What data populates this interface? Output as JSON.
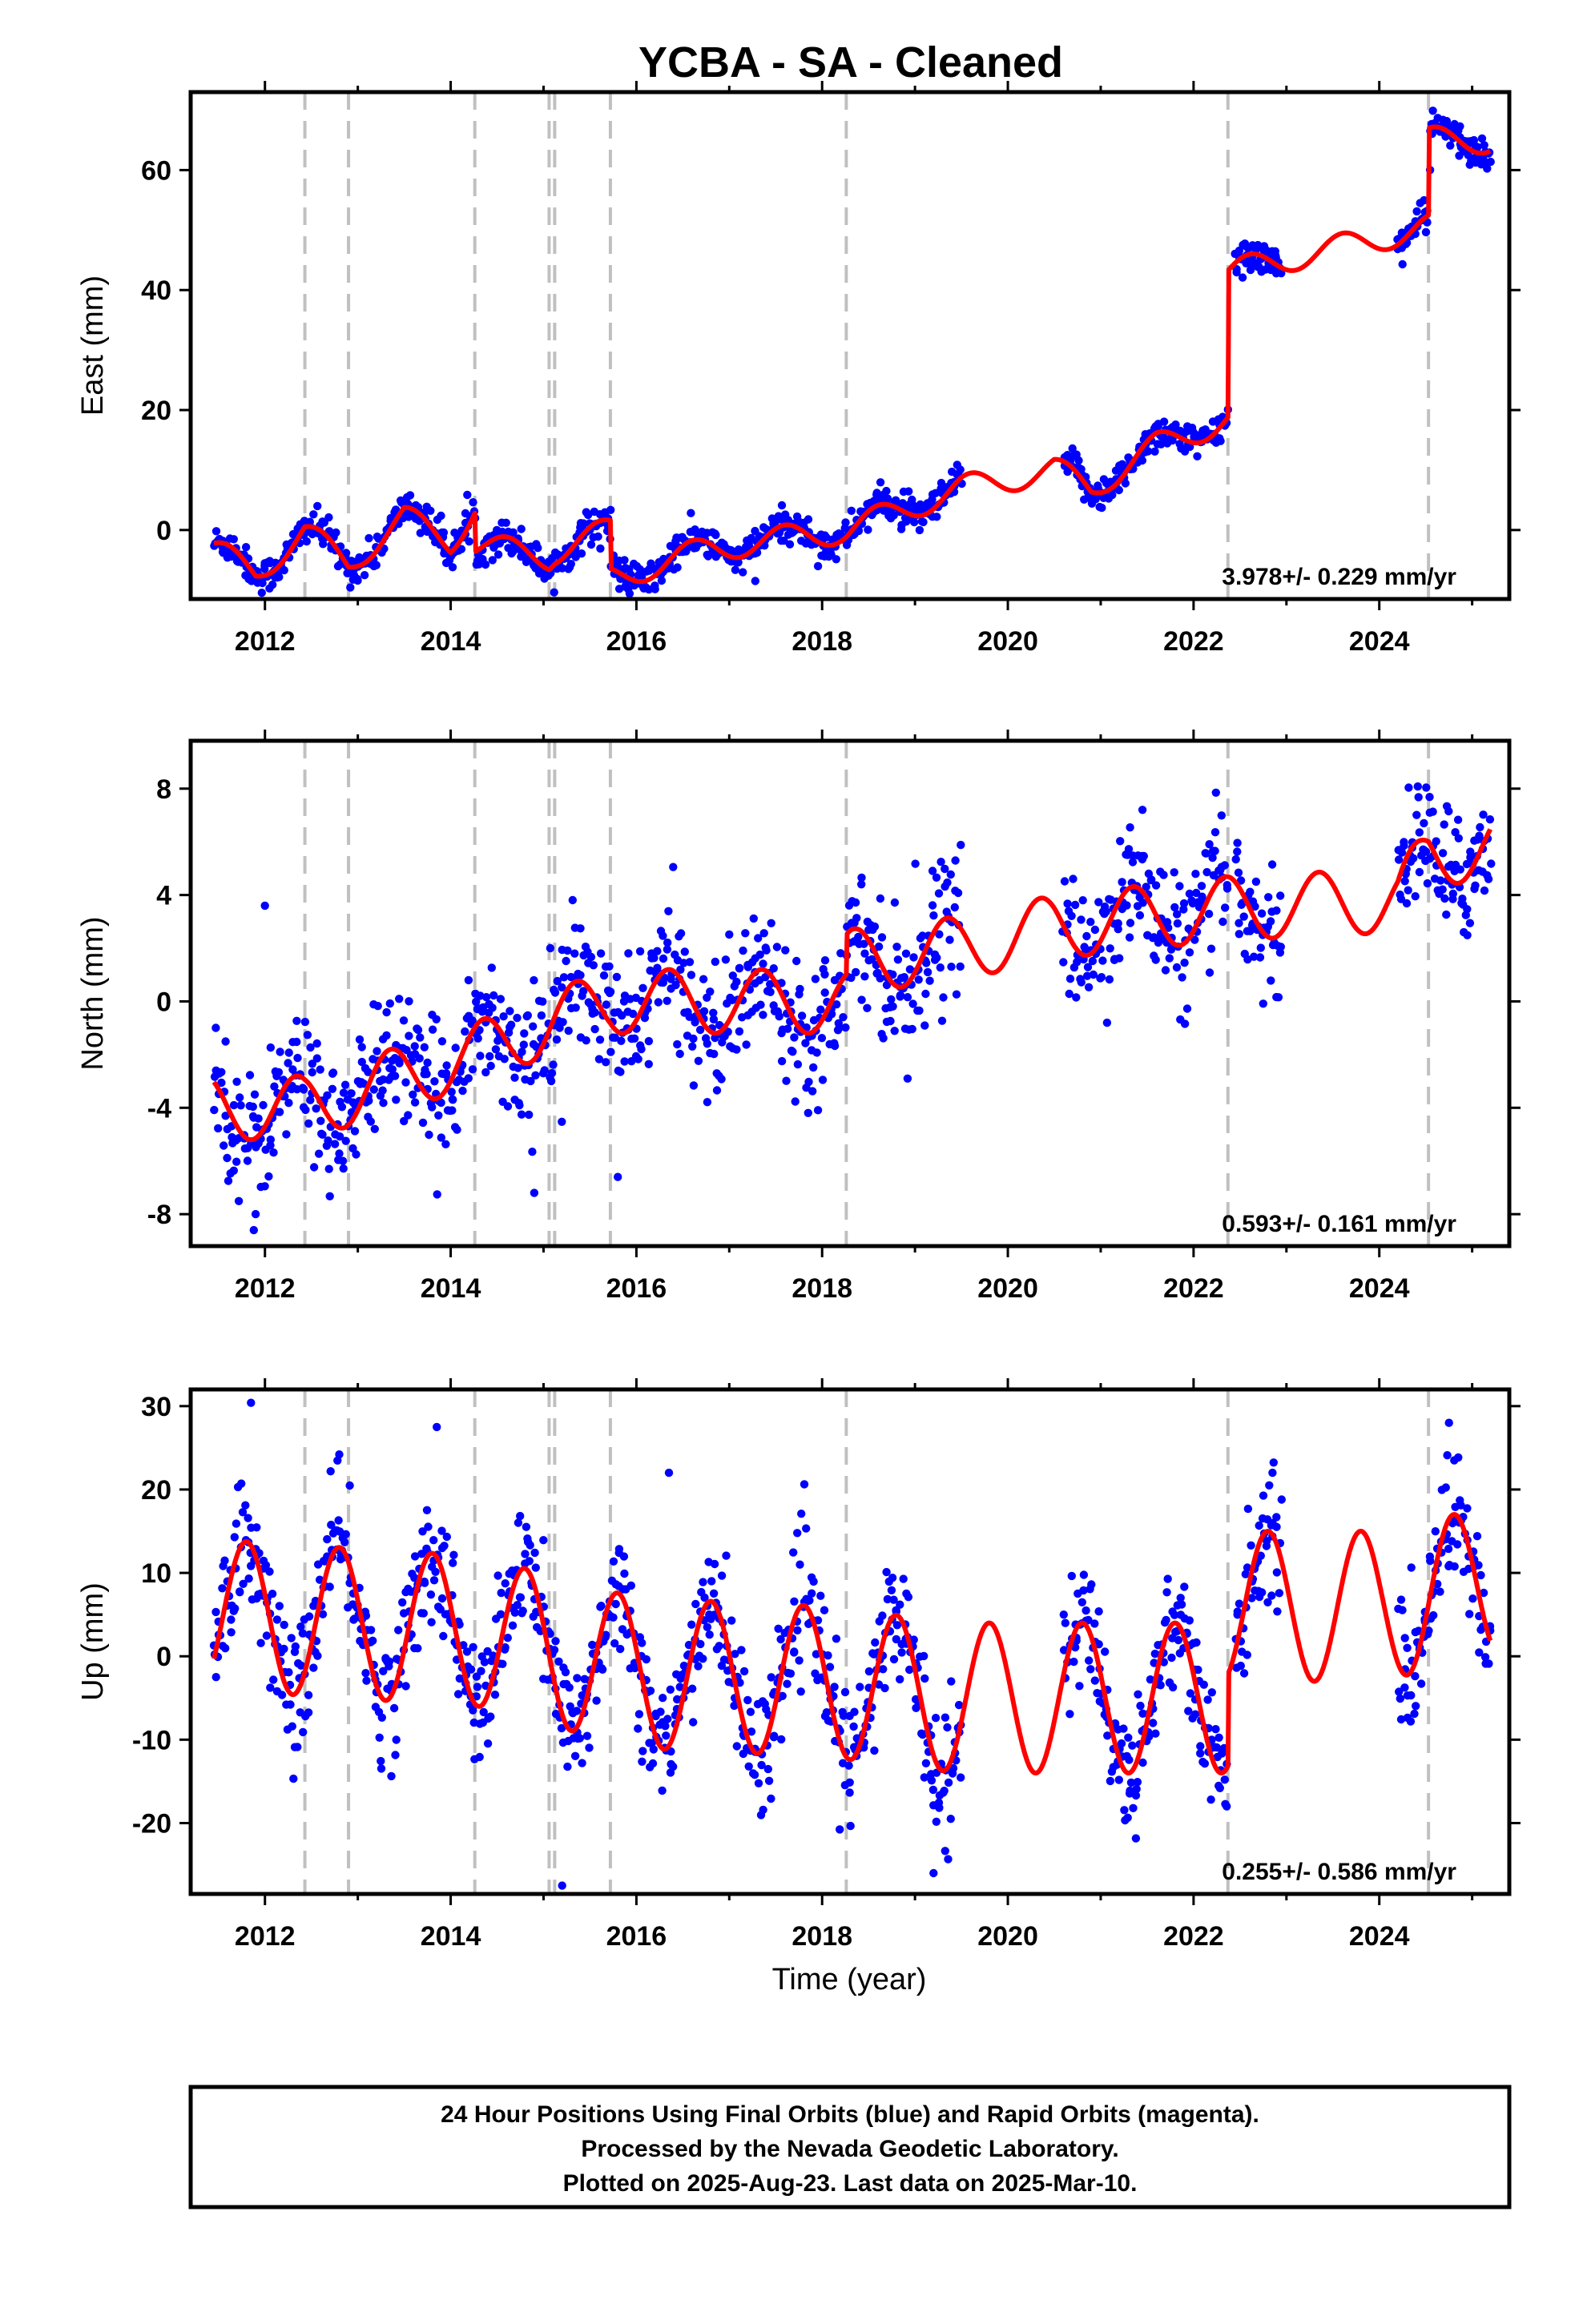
{
  "figure": {
    "title": "YCBA  - SA - Cleaned",
    "xlabel": "Time (year)",
    "footer_lines": [
      "24 Hour Positions Using Final Orbits (blue) and Rapid Orbits (magenta).",
      "Processed by the Nevada Geodetic Laboratory.",
      "Plotted on 2025-Aug-23. Last data on 2025-Mar-10."
    ],
    "colors": {
      "points": "#0000ff",
      "model": "#ff0000",
      "breaks": "#c0c0c0"
    }
  },
  "chart_data": [
    {
      "type": "scatter",
      "name": "east",
      "ylabel": "East (mm)",
      "xlim": [
        2011.2,
        2025.4
      ],
      "ylim": [
        -11.5,
        73
      ],
      "yticks": [
        0,
        20,
        40,
        60
      ],
      "xticks": [
        2012,
        2014,
        2016,
        2018,
        2020,
        2022,
        2024
      ],
      "rate_text": "3.978+/- 0.229 mm/yr",
      "vertical_lines": [
        2012.43,
        2012.9,
        2014.26,
        2015.06,
        2015.12,
        2015.72,
        2018.26,
        2022.37,
        2024.53
      ],
      "data_segments": [
        [
          2011.45,
          2019.5
        ],
        [
          2020.6,
          2022.37
        ],
        [
          2022.45,
          2022.95
        ],
        [
          2024.2,
          2025.2
        ]
      ],
      "model_knots": [
        [
          2011.45,
          -3.5
        ],
        [
          2011.9,
          -7
        ],
        [
          2012.43,
          -0.5
        ],
        [
          2012.9,
          -5.5
        ],
        [
          2013.5,
          2
        ],
        [
          2014.0,
          -2
        ],
        [
          2014.26,
          4
        ],
        [
          2014.27,
          -2.5
        ],
        [
          2015.06,
          -4.5
        ],
        [
          2015.12,
          -3.5
        ],
        [
          2015.72,
          0
        ],
        [
          2015.73,
          -8
        ],
        [
          2016.8,
          -3
        ],
        [
          2018.26,
          0
        ],
        [
          2019.5,
          7
        ],
        [
          2020.5,
          10
        ],
        [
          2020.9,
          7
        ],
        [
          2021.6,
          14
        ],
        [
          2022.37,
          18.5
        ],
        [
          2022.38,
          43
        ],
        [
          2024.53,
          50.5
        ],
        [
          2024.54,
          65
        ],
        [
          2025.2,
          65
        ]
      ],
      "model_amp": 2.2,
      "model_phase": 0.35,
      "scatter_sd": 1.4,
      "outliers": [
        [
          2017.28,
          -8.5
        ],
        [
          2011.55,
          -3.8
        ]
      ]
    },
    {
      "type": "scatter",
      "name": "north",
      "ylabel": "North (mm)",
      "xlim": [
        2011.2,
        2025.4
      ],
      "ylim": [
        -9.2,
        9.8
      ],
      "yticks": [
        -8,
        -4,
        0,
        4,
        8
      ],
      "xticks": [
        2012,
        2014,
        2016,
        2018,
        2020,
        2022,
        2024
      ],
      "rate_text": "0.593+/- 0.161 mm/yr",
      "vertical_lines": [
        2012.43,
        2012.9,
        2014.26,
        2015.06,
        2015.12,
        2015.72,
        2018.26,
        2022.37,
        2024.53
      ],
      "data_segments": [
        [
          2011.45,
          2019.5
        ],
        [
          2020.6,
          2022.37
        ],
        [
          2022.45,
          2022.95
        ],
        [
          2024.2,
          2025.2
        ]
      ],
      "model_knots": [
        [
          2011.45,
          -4
        ],
        [
          2012.43,
          -4
        ],
        [
          2012.9,
          -3.5
        ],
        [
          2014.26,
          -2
        ],
        [
          2015.06,
          -0.8
        ],
        [
          2015.72,
          0
        ],
        [
          2018.26,
          0
        ],
        [
          2018.27,
          1.5
        ],
        [
          2019.5,
          2
        ],
        [
          2020.5,
          2.8
        ],
        [
          2022.37,
          3.5
        ],
        [
          2024.2,
          3.8
        ],
        [
          2024.53,
          5.5
        ],
        [
          2025.2,
          5.8
        ]
      ],
      "model_amp": 1.2,
      "model_phase": 0.1,
      "scatter_sd": 1.2,
      "outliers": [
        [
          2011.88,
          -8.6
        ],
        [
          2011.9,
          -8
        ],
        [
          2015.8,
          -6.6
        ],
        [
          2014.9,
          -7.2
        ],
        [
          2018.92,
          -2.9
        ],
        [
          2012.0,
          3.6
        ],
        [
          2021.45,
          7.2
        ]
      ]
    },
    {
      "type": "scatter",
      "name": "up",
      "ylabel": "Up (mm)",
      "xlim": [
        2011.2,
        2025.4
      ],
      "ylim": [
        -28.5,
        32
      ],
      "yticks": [
        -20,
        -10,
        0,
        10,
        20,
        30
      ],
      "xticks": [
        2012,
        2014,
        2016,
        2018,
        2020,
        2022,
        2024
      ],
      "rate_text": "0.255+/- 0.586 mm/yr",
      "vertical_lines": [
        2012.43,
        2012.9,
        2014.26,
        2015.06,
        2015.12,
        2015.72,
        2018.26,
        2022.37,
        2024.53
      ],
      "data_segments": [
        [
          2011.45,
          2019.5
        ],
        [
          2020.6,
          2022.37
        ],
        [
          2022.45,
          2022.95
        ],
        [
          2024.2,
          2025.2
        ]
      ],
      "model_knots": [
        [
          2011.45,
          5
        ],
        [
          2014.3,
          3
        ],
        [
          2016.0,
          -2
        ],
        [
          2018.0,
          -3
        ],
        [
          2019.5,
          -5
        ],
        [
          2020.5,
          -5
        ],
        [
          2022.37,
          -5
        ],
        [
          2022.38,
          6
        ],
        [
          2024.0,
          6
        ],
        [
          2025.2,
          9
        ]
      ],
      "model_amp": 9,
      "model_phase": 0.55,
      "scatter_sd": 3.8,
      "outliers": [
        [
          2011.85,
          30.4
        ],
        [
          2013.85,
          27.5
        ],
        [
          2015.2,
          -27.5
        ],
        [
          2022.85,
          22
        ],
        [
          2024.75,
          28
        ],
        [
          2012.8,
          24.2
        ],
        [
          2019.2,
          -26
        ],
        [
          2016.35,
          22
        ]
      ]
    }
  ]
}
